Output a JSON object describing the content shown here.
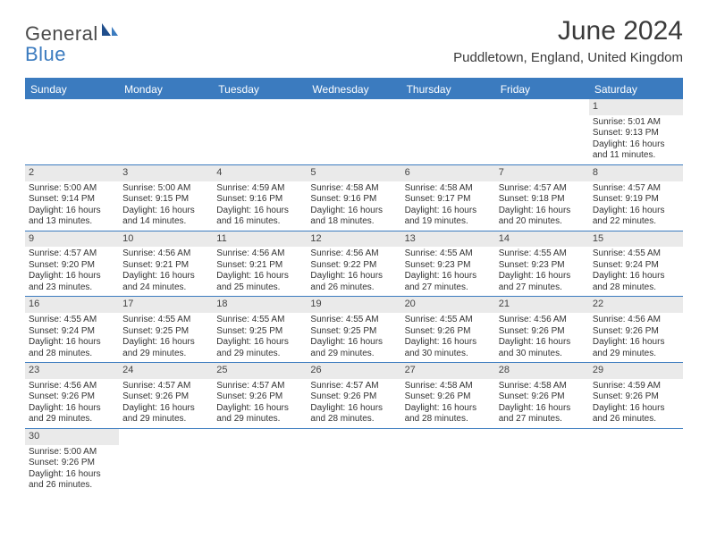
{
  "logo": {
    "part1": "General",
    "part2": "Blue"
  },
  "title": "June 2024",
  "location": "Puddletown, England, United Kingdom",
  "colors": {
    "accent": "#3b7bbf",
    "dayNumBg": "#eaeaea",
    "text": "#333333"
  },
  "dayNames": [
    "Sunday",
    "Monday",
    "Tuesday",
    "Wednesday",
    "Thursday",
    "Friday",
    "Saturday"
  ],
  "weeks": [
    [
      null,
      null,
      null,
      null,
      null,
      null,
      {
        "n": "1",
        "sr": "5:01 AM",
        "ss": "9:13 PM",
        "dl": "16 hours and 11 minutes."
      }
    ],
    [
      {
        "n": "2",
        "sr": "5:00 AM",
        "ss": "9:14 PM",
        "dl": "16 hours and 13 minutes."
      },
      {
        "n": "3",
        "sr": "5:00 AM",
        "ss": "9:15 PM",
        "dl": "16 hours and 14 minutes."
      },
      {
        "n": "4",
        "sr": "4:59 AM",
        "ss": "9:16 PM",
        "dl": "16 hours and 16 minutes."
      },
      {
        "n": "5",
        "sr": "4:58 AM",
        "ss": "9:16 PM",
        "dl": "16 hours and 18 minutes."
      },
      {
        "n": "6",
        "sr": "4:58 AM",
        "ss": "9:17 PM",
        "dl": "16 hours and 19 minutes."
      },
      {
        "n": "7",
        "sr": "4:57 AM",
        "ss": "9:18 PM",
        "dl": "16 hours and 20 minutes."
      },
      {
        "n": "8",
        "sr": "4:57 AM",
        "ss": "9:19 PM",
        "dl": "16 hours and 22 minutes."
      }
    ],
    [
      {
        "n": "9",
        "sr": "4:57 AM",
        "ss": "9:20 PM",
        "dl": "16 hours and 23 minutes."
      },
      {
        "n": "10",
        "sr": "4:56 AM",
        "ss": "9:21 PM",
        "dl": "16 hours and 24 minutes."
      },
      {
        "n": "11",
        "sr": "4:56 AM",
        "ss": "9:21 PM",
        "dl": "16 hours and 25 minutes."
      },
      {
        "n": "12",
        "sr": "4:56 AM",
        "ss": "9:22 PM",
        "dl": "16 hours and 26 minutes."
      },
      {
        "n": "13",
        "sr": "4:55 AM",
        "ss": "9:23 PM",
        "dl": "16 hours and 27 minutes."
      },
      {
        "n": "14",
        "sr": "4:55 AM",
        "ss": "9:23 PM",
        "dl": "16 hours and 27 minutes."
      },
      {
        "n": "15",
        "sr": "4:55 AM",
        "ss": "9:24 PM",
        "dl": "16 hours and 28 minutes."
      }
    ],
    [
      {
        "n": "16",
        "sr": "4:55 AM",
        "ss": "9:24 PM",
        "dl": "16 hours and 28 minutes."
      },
      {
        "n": "17",
        "sr": "4:55 AM",
        "ss": "9:25 PM",
        "dl": "16 hours and 29 minutes."
      },
      {
        "n": "18",
        "sr": "4:55 AM",
        "ss": "9:25 PM",
        "dl": "16 hours and 29 minutes."
      },
      {
        "n": "19",
        "sr": "4:55 AM",
        "ss": "9:25 PM",
        "dl": "16 hours and 29 minutes."
      },
      {
        "n": "20",
        "sr": "4:55 AM",
        "ss": "9:26 PM",
        "dl": "16 hours and 30 minutes."
      },
      {
        "n": "21",
        "sr": "4:56 AM",
        "ss": "9:26 PM",
        "dl": "16 hours and 30 minutes."
      },
      {
        "n": "22",
        "sr": "4:56 AM",
        "ss": "9:26 PM",
        "dl": "16 hours and 29 minutes."
      }
    ],
    [
      {
        "n": "23",
        "sr": "4:56 AM",
        "ss": "9:26 PM",
        "dl": "16 hours and 29 minutes."
      },
      {
        "n": "24",
        "sr": "4:57 AM",
        "ss": "9:26 PM",
        "dl": "16 hours and 29 minutes."
      },
      {
        "n": "25",
        "sr": "4:57 AM",
        "ss": "9:26 PM",
        "dl": "16 hours and 29 minutes."
      },
      {
        "n": "26",
        "sr": "4:57 AM",
        "ss": "9:26 PM",
        "dl": "16 hours and 28 minutes."
      },
      {
        "n": "27",
        "sr": "4:58 AM",
        "ss": "9:26 PM",
        "dl": "16 hours and 28 minutes."
      },
      {
        "n": "28",
        "sr": "4:58 AM",
        "ss": "9:26 PM",
        "dl": "16 hours and 27 minutes."
      },
      {
        "n": "29",
        "sr": "4:59 AM",
        "ss": "9:26 PM",
        "dl": "16 hours and 26 minutes."
      }
    ],
    [
      {
        "n": "30",
        "sr": "5:00 AM",
        "ss": "9:26 PM",
        "dl": "16 hours and 26 minutes."
      },
      null,
      null,
      null,
      null,
      null,
      null
    ]
  ],
  "labels": {
    "sunrise": "Sunrise: ",
    "sunset": "Sunset: ",
    "daylight": "Daylight: "
  }
}
